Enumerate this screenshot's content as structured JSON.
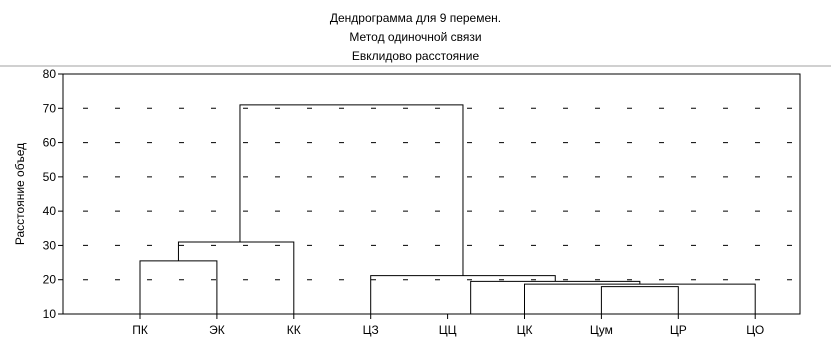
{
  "chart_data": {
    "type": "dendrogram",
    "title": "Дендрограмма для 9   перемен.",
    "subtitle": "Метод одиночной связи",
    "subtitle2": "Евклидово расстояние",
    "ylabel": "Расстояние объед",
    "xlabel": "",
    "ylim": [
      10,
      80
    ],
    "yticks": [
      "10",
      "20",
      "30",
      "40",
      "50",
      "60",
      "70",
      "80"
    ],
    "leaves": [
      "ПК",
      "ЭК",
      "КК",
      "ЦЗ",
      "ЦЦ",
      "ЦК",
      "Цум",
      "ЦР",
      "ЦО"
    ],
    "grid": "dashed",
    "merges": [
      {
        "left": "Цум",
        "right": "ЦР",
        "height": 18
      },
      {
        "left": "Цум+ЦР",
        "right": "ЦО",
        "height": 18.7
      },
      {
        "left": "ЦК",
        "right": "Цум+ЦР+ЦО",
        "height": 19.5
      },
      {
        "left": "ЦЦ",
        "right": "ЦК+Цум+ЦР+ЦО",
        "height": 21.2
      },
      {
        "left": "ЦЗ",
        "right": "ЦЦ+ЦК+Цум+ЦР+ЦО",
        "height": 21.2
      },
      {
        "left": "ПК",
        "right": "ЭК",
        "height": 25.5
      },
      {
        "left": "ПК+ЭК",
        "right": "КК",
        "height": 31
      },
      {
        "left": "ПК+ЭК+КК",
        "right": "ЦЗ+ЦЦ+ЦК+Цум+ЦР+ЦО",
        "height": 71
      }
    ],
    "links": [
      {
        "x1": 0,
        "x2": 1,
        "y1a": 10,
        "y1b": 10,
        "h": 25.5
      },
      {
        "x1": 0.5,
        "x2": 2,
        "y1a": 25.5,
        "y1b": 10,
        "h": 31
      },
      {
        "x1": 6,
        "x2": 7,
        "y1a": 10,
        "y1b": 10,
        "h": 18
      },
      {
        "x1": 5,
        "x2": 8,
        "y1a": 10,
        "y1b": 10,
        "h": 18.7
      },
      {
        "x1": 4.3,
        "x2": 6.5,
        "y1a": 10,
        "y1b": 18.7,
        "h": 19.5
      },
      {
        "x1": 3,
        "x2": 5.4,
        "y1a": 10,
        "y1b": 19.5,
        "h": 21.2
      },
      {
        "x1": 1.3,
        "x2": 4.2,
        "y1a": 31,
        "y1b": 21.2,
        "h": 71
      }
    ]
  }
}
